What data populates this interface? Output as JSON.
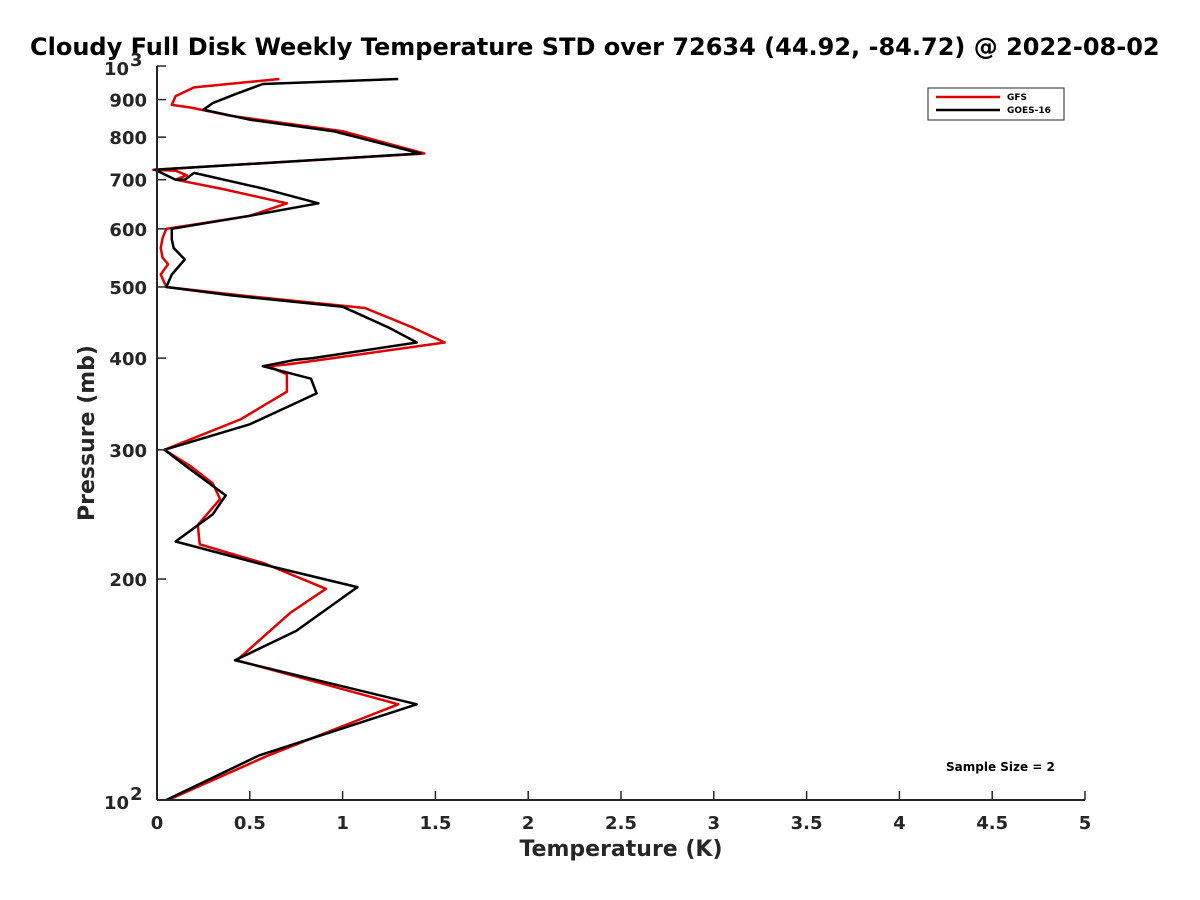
{
  "chart_data": {
    "type": "line",
    "title": "Cloudy Full Disk Weekly Temperature STD over 72634 (44.92, -84.72) @ 2022-08-02",
    "xlabel": "Temperature (K)",
    "ylabel": "Pressure (mb)",
    "xlim": [
      0,
      5
    ],
    "ylim": [
      1000,
      100
    ],
    "y_scale": "log",
    "y_reversed": true,
    "grid": false,
    "legend_position": "top-right",
    "x_ticks": [
      "0",
      "0.5",
      "1",
      "1.5",
      "2",
      "2.5",
      "3",
      "3.5",
      "4",
      "4.5",
      "5"
    ],
    "x_tick_values": [
      0,
      0.5,
      1,
      1.5,
      2,
      2.5,
      3,
      3.5,
      4,
      4.5,
      5
    ],
    "y_ticks": [
      {
        "value": 100,
        "base": "10",
        "exp": "2"
      },
      {
        "value": 200,
        "label": "200"
      },
      {
        "value": 300,
        "label": "300"
      },
      {
        "value": 400,
        "label": "400"
      },
      {
        "value": 500,
        "label": "500"
      },
      {
        "value": 600,
        "label": "600"
      },
      {
        "value": 700,
        "label": "700"
      },
      {
        "value": 800,
        "label": "800"
      },
      {
        "value": 900,
        "label": "900"
      },
      {
        "value": 1000,
        "base": "10",
        "exp": "3"
      }
    ],
    "series": [
      {
        "name": "GFS",
        "color": "#e00000",
        "points": [
          [
            0.06,
            100
          ],
          [
            0.6,
            115
          ],
          [
            1.3,
            135
          ],
          [
            0.43,
            155
          ],
          [
            0.72,
            180
          ],
          [
            0.91,
            194
          ],
          [
            0.58,
            210
          ],
          [
            0.23,
            223
          ],
          [
            0.22,
            237
          ],
          [
            0.34,
            257
          ],
          [
            0.3,
            270
          ],
          [
            0.18,
            285
          ],
          [
            0.04,
            300
          ],
          [
            0.45,
            330
          ],
          [
            0.7,
            360
          ],
          [
            0.7,
            380
          ],
          [
            0.6,
            390
          ],
          [
            0.7,
            392
          ],
          [
            0.95,
            400
          ],
          [
            1.55,
            420
          ],
          [
            1.38,
            440
          ],
          [
            1.12,
            468
          ],
          [
            0.45,
            487
          ],
          [
            0.05,
            500
          ],
          [
            0.02,
            520
          ],
          [
            0.06,
            537
          ],
          [
            0.03,
            548
          ],
          [
            0.02,
            565
          ],
          [
            0.03,
            583
          ],
          [
            0.05,
            600
          ],
          [
            0.5,
            625
          ],
          [
            0.7,
            650
          ],
          [
            0.35,
            680
          ],
          [
            0.1,
            700
          ],
          [
            0.16,
            710
          ],
          [
            0.1,
            720
          ],
          [
            -0.02,
            722
          ],
          [
            1.44,
            760
          ],
          [
            1.0,
            815
          ],
          [
            0.4,
            855
          ],
          [
            0.18,
            878
          ],
          [
            0.08,
            885
          ],
          [
            0.1,
            910
          ],
          [
            0.2,
            935
          ],
          [
            0.66,
            960
          ]
        ]
      },
      {
        "name": "GOES-16",
        "color": "#000000",
        "points": [
          [
            0.05,
            100
          ],
          [
            0.55,
            115
          ],
          [
            1.4,
            135
          ],
          [
            0.42,
            155
          ],
          [
            0.75,
            170
          ],
          [
            1.08,
            195
          ],
          [
            0.55,
            210
          ],
          [
            0.1,
            225
          ],
          [
            0.3,
            245
          ],
          [
            0.37,
            260
          ],
          [
            0.18,
            282
          ],
          [
            0.04,
            300
          ],
          [
            0.5,
            325
          ],
          [
            0.86,
            358
          ],
          [
            0.83,
            375
          ],
          [
            0.57,
            390
          ],
          [
            0.75,
            398
          ],
          [
            0.84,
            400
          ],
          [
            1.4,
            420
          ],
          [
            1.25,
            440
          ],
          [
            1.0,
            470
          ],
          [
            0.4,
            487
          ],
          [
            0.05,
            500
          ],
          [
            0.08,
            520
          ],
          [
            0.15,
            545
          ],
          [
            0.09,
            565
          ],
          [
            0.08,
            580
          ],
          [
            0.08,
            600
          ],
          [
            0.5,
            625
          ],
          [
            0.87,
            650
          ],
          [
            0.58,
            680
          ],
          [
            0.2,
            715
          ],
          [
            0.15,
            700
          ],
          [
            0.1,
            700
          ],
          [
            -0.01,
            722
          ],
          [
            1.42,
            760
          ],
          [
            0.95,
            815
          ],
          [
            0.5,
            845
          ],
          [
            0.25,
            872
          ],
          [
            0.3,
            890
          ],
          [
            0.42,
            915
          ],
          [
            0.57,
            945
          ],
          [
            1.3,
            960
          ]
        ]
      }
    ],
    "annotations": [
      "Sample Size = 2"
    ]
  }
}
